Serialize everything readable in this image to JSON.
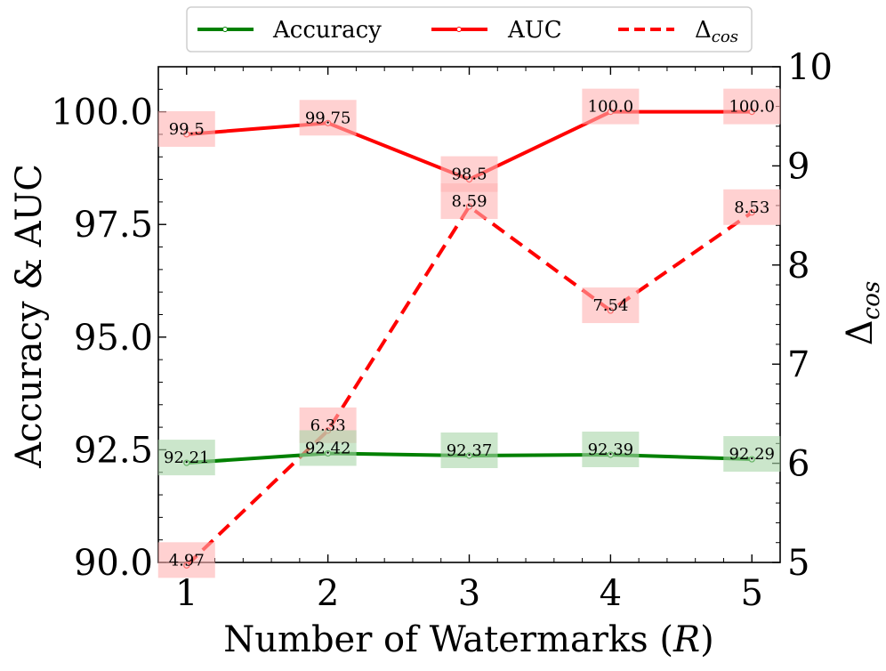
{
  "chart_data": {
    "type": "line",
    "x": [
      1,
      2,
      3,
      4,
      5
    ],
    "xlabel": "Number of Watermarks (R)",
    "xlabel_main": "Number of Watermarks (",
    "xlabel_var": "R",
    "xlabel_close": ")",
    "ylabel_left": "Accuracy & AUC",
    "ylabel_right": "Δcos",
    "ylabel_right_main": "Δ",
    "ylabel_right_sub": "cos",
    "xlim": [
      0.8,
      5.2
    ],
    "ylim_left": [
      90.0,
      101.0
    ],
    "ylim_right": [
      5,
      10
    ],
    "xticks": [
      "1",
      "2",
      "3",
      "4",
      "5"
    ],
    "yticks_left": [
      "90.0",
      "92.5",
      "95.0",
      "97.5",
      "100.0"
    ],
    "yticks_right": [
      "5",
      "6",
      "7",
      "8",
      "9",
      "10"
    ],
    "legend_position": "top-center",
    "series": [
      {
        "name": "Accuracy",
        "axis": "left",
        "style": "solid",
        "color": "#008000",
        "label_bg": "#a8d5a8",
        "values": [
          92.21,
          92.42,
          92.37,
          92.39,
          92.29
        ],
        "labels": [
          "92.21",
          "92.42",
          "92.37",
          "92.39",
          "92.29"
        ]
      },
      {
        "name": "AUC",
        "axis": "left",
        "style": "solid",
        "color": "#ff0000",
        "label_bg": "#ffb3b3",
        "values": [
          99.5,
          99.75,
          98.5,
          100.0,
          100.0
        ],
        "labels": [
          "99.5",
          "99.75",
          "98.5",
          "100.0",
          "100.0"
        ]
      },
      {
        "name": "Δcos",
        "name_main": "Δ",
        "name_sub": "cos",
        "axis": "right",
        "style": "dashed",
        "color": "#ff0000",
        "label_bg": "#ffb3b3",
        "values": [
          4.97,
          6.33,
          8.59,
          7.54,
          8.53
        ],
        "labels": [
          "4.97",
          "6.33",
          "8.59",
          "7.54",
          "8.53"
        ]
      }
    ]
  }
}
